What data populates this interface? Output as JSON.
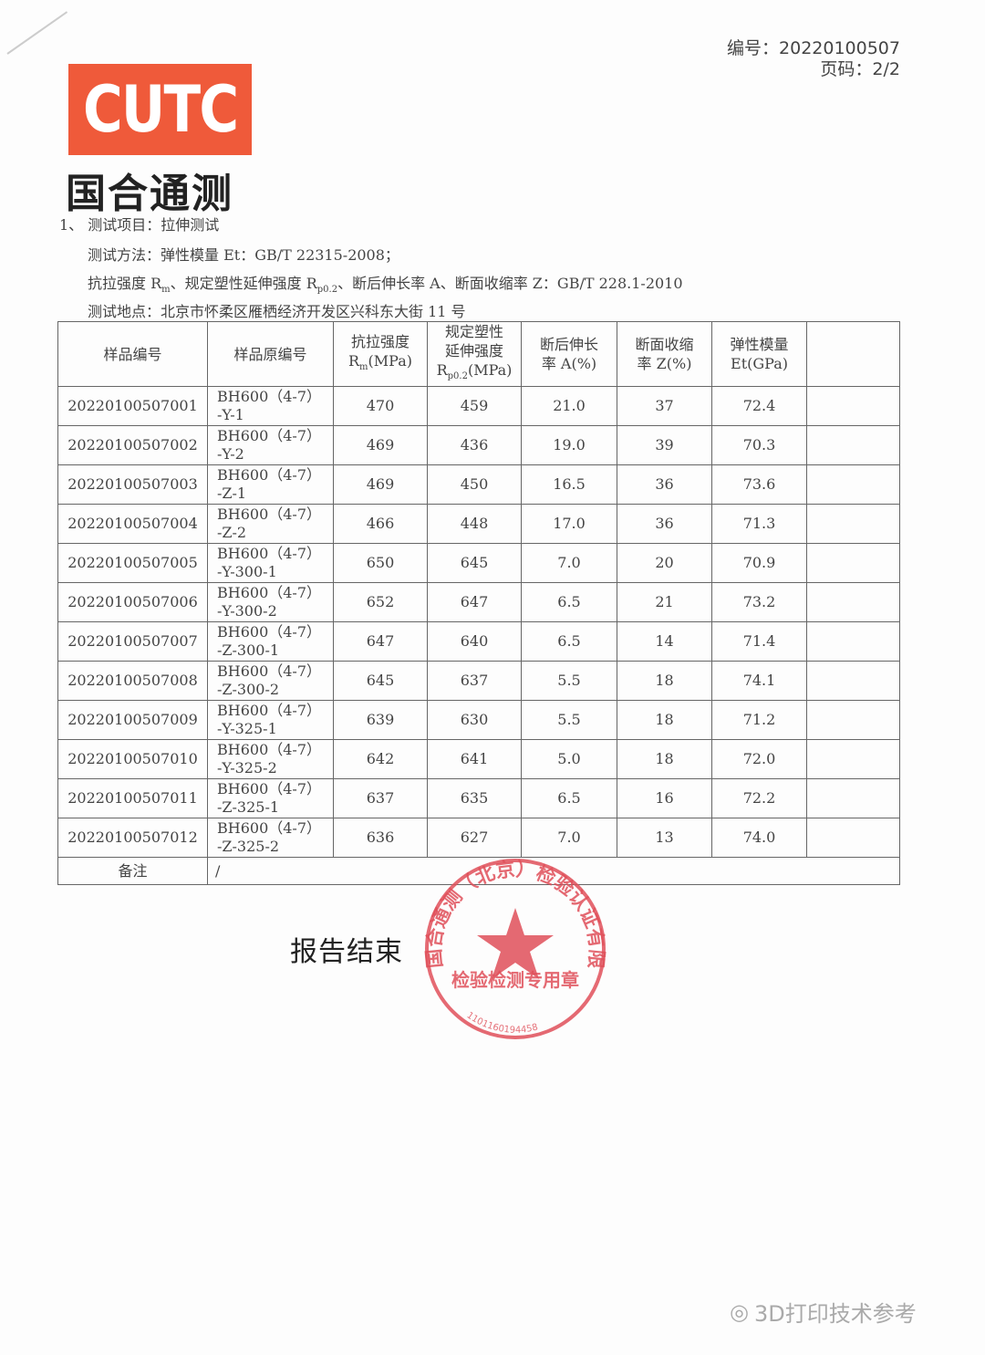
{
  "header": {
    "report_no": "编号：20220100507",
    "page": "页码：2/2"
  },
  "logo": {
    "text": "CUTC",
    "cn": "国合通测"
  },
  "intro": {
    "item": "1、 测试项目：拉伸测试",
    "method": "测试方法：弹性模量 Et：GB/T 22315-2008；",
    "standard_prefix": "抗拉强度 R",
    "standard_mid": "、规定塑性延伸强度 R",
    "standard_suffix": "、断后伸长率 A、断面收缩率 Z：GB/T 228.1-2010",
    "sub_m": "m",
    "sub_p": "p0.2",
    "location": "测试地点：北京市怀柔区雁栖经济开发区兴科东大街 11 号"
  },
  "table": {
    "headers": [
      "样品编号",
      "样品原编号",
      "抗拉强度\nRm(MPa)",
      "规定塑性\n延伸强度\nRp0.2(MPa)",
      "断后伸长\n率 A(%)",
      "断面收缩\n率 Z(%)",
      "弹性模量\nEt(GPa)",
      ""
    ],
    "rows": [
      [
        "20220100507001",
        "BH600（4-7）\n-Y-1",
        "470",
        "459",
        "21.0",
        "37",
        "72.4",
        ""
      ],
      [
        "20220100507002",
        "BH600（4-7）\n-Y-2",
        "469",
        "436",
        "19.0",
        "39",
        "70.3",
        ""
      ],
      [
        "20220100507003",
        "BH600（4-7）\n-Z-1",
        "469",
        "450",
        "16.5",
        "36",
        "73.6",
        ""
      ],
      [
        "20220100507004",
        "BH600（4-7）\n-Z-2",
        "466",
        "448",
        "17.0",
        "36",
        "71.3",
        ""
      ],
      [
        "20220100507005",
        "BH600（4-7）\n-Y-300-1",
        "650",
        "645",
        "7.0",
        "20",
        "70.9",
        ""
      ],
      [
        "20220100507006",
        "BH600（4-7）\n-Y-300-2",
        "652",
        "647",
        "6.5",
        "21",
        "73.2",
        ""
      ],
      [
        "20220100507007",
        "BH600（4-7）\n-Z-300-1",
        "647",
        "640",
        "6.5",
        "14",
        "71.4",
        ""
      ],
      [
        "20220100507008",
        "BH600（4-7）\n-Z-300-2",
        "645",
        "637",
        "5.5",
        "18",
        "74.1",
        ""
      ],
      [
        "20220100507009",
        "BH600（4-7）\n-Y-325-1",
        "639",
        "630",
        "5.5",
        "18",
        "71.2",
        ""
      ],
      [
        "20220100507010",
        "BH600（4-7）\n-Y-325-2",
        "642",
        "641",
        "5.0",
        "18",
        "72.0",
        ""
      ],
      [
        "20220100507011",
        "BH600（4-7）\n-Z-325-1",
        "637",
        "635",
        "6.5",
        "16",
        "72.2",
        ""
      ],
      [
        "20220100507012",
        "BH600（4-7）\n-Z-325-2",
        "636",
        "627",
        "7.0",
        "13",
        "74.0",
        ""
      ]
    ],
    "remark_label": "备注",
    "remark_value": "/"
  },
  "stamp": {
    "ring": "国合通测（北京）检验认证有限公司",
    "inner": "检验检测专用章",
    "number": "1101160194458",
    "color": "#e0505a"
  },
  "end_text": "报告结束",
  "watermark": "3D打印技术参考"
}
